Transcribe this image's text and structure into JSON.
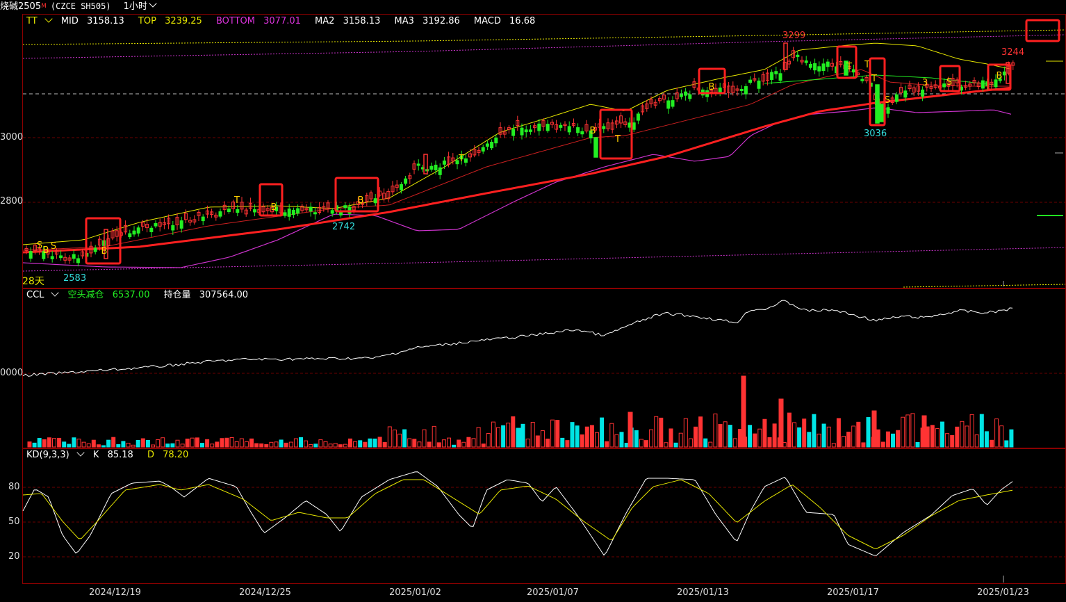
{
  "header": {
    "symbol": "烧碱2505",
    "marker": "M",
    "code": "(CZCE SH505)",
    "period": "1小时"
  },
  "main_panel": {
    "indicator": "TT",
    "mid_label": "MID",
    "mid": "3158.13",
    "top_label": "TOP",
    "top": "3239.25",
    "bottom_label": "BOTTOM",
    "bottom": "3077.01",
    "ma2_label": "MA2",
    "ma2": "3158.13",
    "ma3_label": "MA3",
    "ma3": "3192.86",
    "macd_label": "MACD",
    "macd": "16.68",
    "y_ticks": [
      "3000",
      "2800"
    ],
    "days_label": "28天",
    "annotations": {
      "high": "3299",
      "last": "3244",
      "low_right": "3036",
      "low_mid": "2742",
      "low_left": "2583"
    }
  },
  "ccl_panel": {
    "indicator": "CCL",
    "signal": "空头减仓",
    "signal_value": "6537.00",
    "oi_label": "持仓量",
    "oi_value": "307564.00",
    "y_tick": "0000"
  },
  "kd_panel": {
    "indicator": "KD(9,3,3)",
    "k_label": "K",
    "k": "85.18",
    "d_label": "D",
    "d": "78.20",
    "y_ticks": [
      "80",
      "50",
      "20"
    ]
  },
  "x_axis": [
    "2024/12/19",
    "2024/12/25",
    "2025/01/02",
    "2025/01/07",
    "2025/01/13",
    "2025/01/17",
    "2025/01/23"
  ],
  "signals": [
    "S",
    "B",
    "S",
    "B",
    "T",
    "B",
    "B",
    "T",
    "B",
    "T",
    "B",
    "T",
    "T",
    "T",
    "S",
    "3",
    "S",
    "B",
    "B"
  ],
  "colors": {
    "up": "#ff3333",
    "down": "#22ee22",
    "mid": "#e6e600",
    "bottom": "#cc33cc",
    "ma": "#ff2020",
    "grid": "#6b0000",
    "vol_down": "#00e5e5"
  }
}
